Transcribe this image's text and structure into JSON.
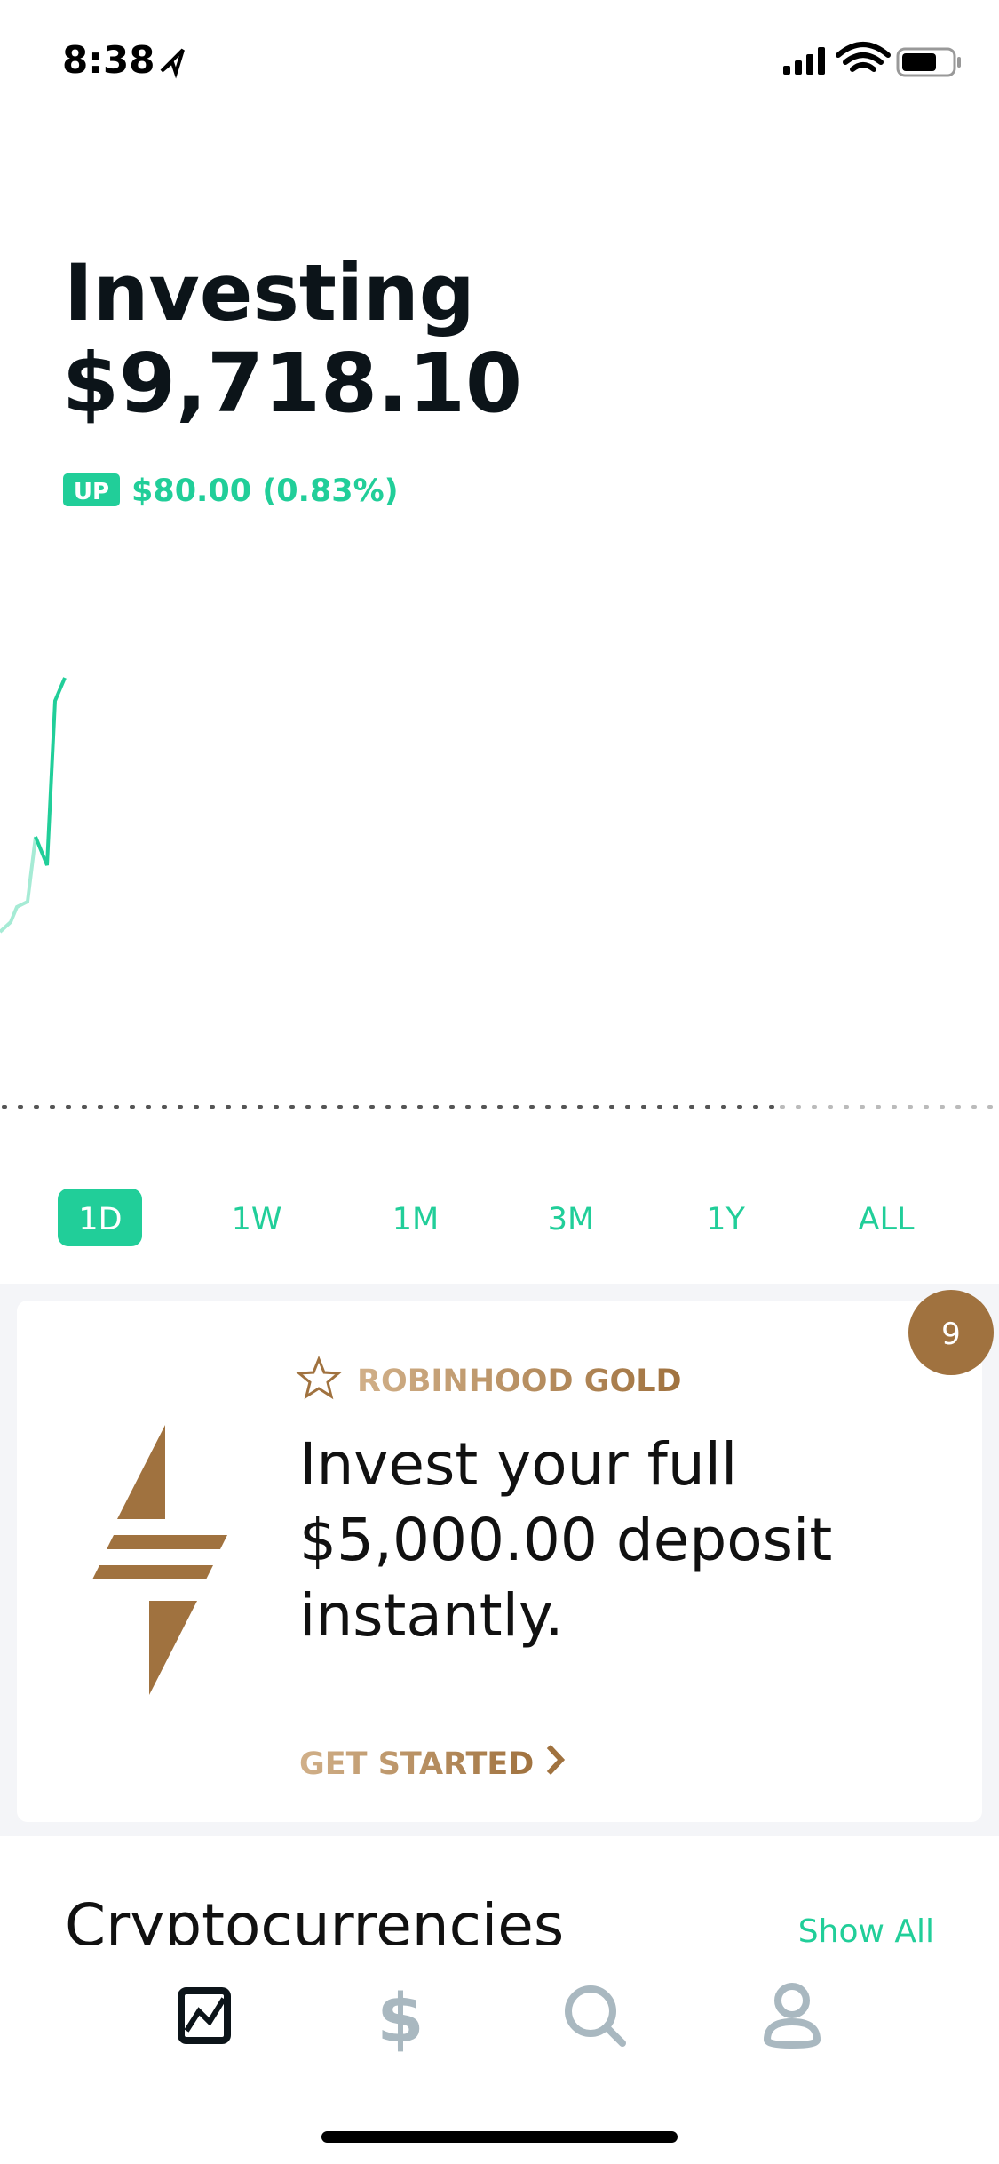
{
  "status_bar": {
    "time": "8:38"
  },
  "portfolio": {
    "title": "Investing",
    "value": "$9,718.10",
    "change_badge": "UP",
    "change": "$80.00 (0.83%)"
  },
  "ranges": [
    "1D",
    "1W",
    "1M",
    "3M",
    "1Y",
    "ALL"
  ],
  "promo": {
    "badge": "9",
    "eyebrow": "ROBINHOOD GOLD",
    "headline": [
      "Invest your full",
      "$5,000.00 deposit",
      "instantly."
    ],
    "cta": "GET STARTED"
  },
  "section": {
    "title": "Cryptocurrencies",
    "link": "Show All"
  }
}
